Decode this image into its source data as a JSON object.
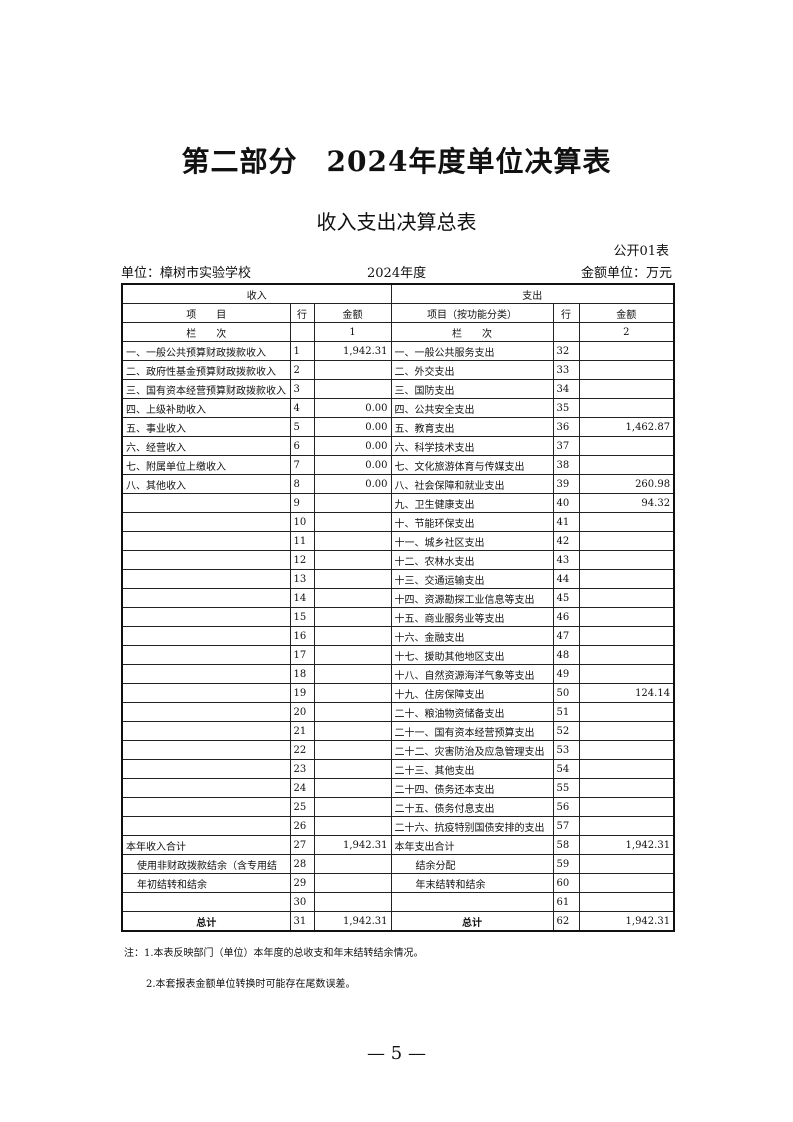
{
  "title": "第二部分　2024年度单位决算表",
  "subtitle": "收入支出决算总表",
  "table_no": "公开01表",
  "unit": "单位：樟树市实验学校",
  "year": "2024年度",
  "amount_unit": "金额单位：万元",
  "headers": {
    "income": "收入",
    "expense": "支出",
    "item": "项　　目",
    "row": "行",
    "amount": "金额",
    "item_func": "项目（按功能分类）",
    "column_order": "栏　　次",
    "col1": "1",
    "col2": "2"
  },
  "rows": [
    [
      "一、一般公共预算财政拨款收入",
      "1",
      "1,942.31",
      "一、一般公共服务支出",
      "32",
      ""
    ],
    [
      "二、政府性基金预算财政拨款收入",
      "2",
      "",
      "二、外交支出",
      "33",
      ""
    ],
    [
      "三、国有资本经营预算财政拨款收入",
      "3",
      "",
      "三、国防支出",
      "34",
      ""
    ],
    [
      "四、上级补助收入",
      "4",
      "0.00",
      "四、公共安全支出",
      "35",
      ""
    ],
    [
      "五、事业收入",
      "5",
      "0.00",
      "五、教育支出",
      "36",
      "1,462.87"
    ],
    [
      "六、经营收入",
      "6",
      "0.00",
      "六、科学技术支出",
      "37",
      ""
    ],
    [
      "七、附属单位上缴收入",
      "7",
      "0.00",
      "七、文化旅游体育与传媒支出",
      "38",
      ""
    ],
    [
      "八、其他收入",
      "8",
      "0.00",
      "八、社会保障和就业支出",
      "39",
      "260.98"
    ],
    [
      "",
      "9",
      "",
      "九、卫生健康支出",
      "40",
      "94.32"
    ],
    [
      "",
      "10",
      "",
      "十、节能环保支出",
      "41",
      ""
    ],
    [
      "",
      "11",
      "",
      "十一、城乡社区支出",
      "42",
      ""
    ],
    [
      "",
      "12",
      "",
      "十二、农林水支出",
      "43",
      ""
    ],
    [
      "",
      "13",
      "",
      "十三、交通运输支出",
      "44",
      ""
    ],
    [
      "",
      "14",
      "",
      "十四、资源勘探工业信息等支出",
      "45",
      ""
    ],
    [
      "",
      "15",
      "",
      "十五、商业服务业等支出",
      "46",
      ""
    ],
    [
      "",
      "16",
      "",
      "十六、金融支出",
      "47",
      ""
    ],
    [
      "",
      "17",
      "",
      "十七、援助其他地区支出",
      "48",
      ""
    ],
    [
      "",
      "18",
      "",
      "十八、自然资源海洋气象等支出",
      "49",
      ""
    ],
    [
      "",
      "19",
      "",
      "十九、住房保障支出",
      "50",
      "124.14"
    ],
    [
      "",
      "20",
      "",
      "二十、粮油物资储备支出",
      "51",
      ""
    ],
    [
      "",
      "21",
      "",
      "二十一、国有资本经营预算支出",
      "52",
      ""
    ],
    [
      "",
      "22",
      "",
      "二十二、灾害防治及应急管理支出",
      "53",
      ""
    ],
    [
      "",
      "23",
      "",
      "二十三、其他支出",
      "54",
      ""
    ],
    [
      "",
      "24",
      "",
      "二十四、债务还本支出",
      "55",
      ""
    ],
    [
      "",
      "25",
      "",
      "二十五、债务付息支出",
      "56",
      ""
    ],
    [
      "",
      "26",
      "",
      "二十六、抗疫特别国债安排的支出",
      "57",
      ""
    ],
    [
      "本年收入合计",
      "27",
      "1,942.31",
      "本年支出合计",
      "58",
      "1,942.31"
    ],
    [
      "使用非财政拨款结余（含专用结",
      "28",
      "",
      "结余分配",
      "59",
      ""
    ],
    [
      "年初结转和结余",
      "29",
      "",
      "年末结转和结余",
      "60",
      ""
    ],
    [
      "",
      "30",
      "",
      "",
      "61",
      ""
    ],
    [
      "总计",
      "31",
      "1,942.31",
      "总计",
      "62",
      "1,942.31"
    ]
  ],
  "notes": [
    "注：1.本表反映部门（单位）本年度的总收支和年末结转结余情况。",
    "2.本套报表金额单位转换时可能存在尾数误差。"
  ],
  "page_number": "— 5 —"
}
